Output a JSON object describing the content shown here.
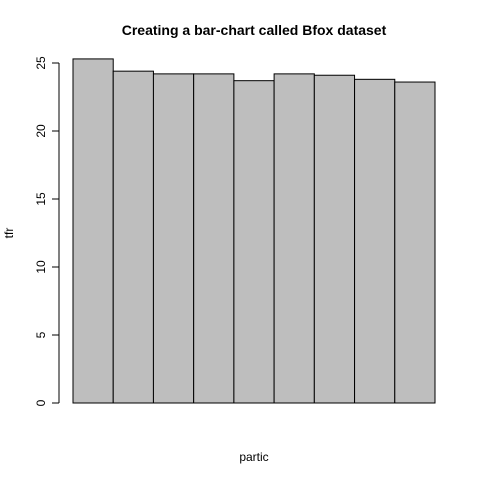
{
  "chart_data": {
    "type": "bar",
    "title": "Creating a bar-chart called Bfox dataset",
    "xlabel": "partic",
    "ylabel": "tfr",
    "ylim": [
      0,
      25
    ],
    "yticks": [
      0,
      5,
      10,
      15,
      20,
      25
    ],
    "values": [
      25.3,
      24.4,
      24.2,
      24.2,
      23.7,
      24.2,
      24.1,
      23.8,
      23.6
    ],
    "bar_fill": "#bebebe",
    "bar_stroke": "#000000",
    "grid": false,
    "legend": "none"
  }
}
